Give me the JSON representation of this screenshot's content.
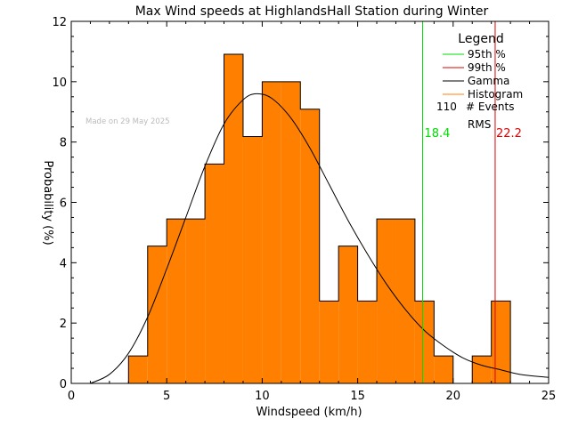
{
  "chart_data": {
    "type": "bar",
    "title": "Max Wind speeds at HighlandsHall Station during Winter",
    "xlabel": "Windspeed (km/h)",
    "ylabel": "Probability (%)",
    "watermark": "Made on 29 May 2025",
    "xlim": [
      0,
      25
    ],
    "ylim": [
      0,
      12
    ],
    "x_ticks": [
      "0",
      "5",
      "10",
      "15",
      "20",
      "25"
    ],
    "y_ticks": [
      "0",
      "2",
      "4",
      "6",
      "8",
      "10",
      "12"
    ],
    "bin_width": 1,
    "bins": [
      {
        "x": 3,
        "value": 0.91
      },
      {
        "x": 4,
        "value": 4.55
      },
      {
        "x": 5,
        "value": 5.45
      },
      {
        "x": 6,
        "value": 5.45
      },
      {
        "x": 7,
        "value": 7.27
      },
      {
        "x": 8,
        "value": 10.91
      },
      {
        "x": 9,
        "value": 8.18
      },
      {
        "x": 10,
        "value": 10.0
      },
      {
        "x": 11,
        "value": 10.0
      },
      {
        "x": 12,
        "value": 9.09
      },
      {
        "x": 13,
        "value": 2.73
      },
      {
        "x": 14,
        "value": 4.55
      },
      {
        "x": 15,
        "value": 2.73
      },
      {
        "x": 16,
        "value": 5.45
      },
      {
        "x": 17,
        "value": 5.45
      },
      {
        "x": 18,
        "value": 2.73
      },
      {
        "x": 19,
        "value": 0.91
      },
      {
        "x": 20,
        "value": 0
      },
      {
        "x": 21,
        "value": 0.91
      },
      {
        "x": 22,
        "value": 2.73
      }
    ],
    "gamma_curve": {
      "peak_x": 9.7,
      "peak_y": 9.6,
      "points": [
        [
          1.0,
          0.0
        ],
        [
          2.0,
          0.3
        ],
        [
          3.0,
          1.0
        ],
        [
          4.0,
          2.2
        ],
        [
          5.0,
          3.8
        ],
        [
          6.0,
          5.5
        ],
        [
          7.0,
          7.2
        ],
        [
          8.0,
          8.6
        ],
        [
          9.0,
          9.4
        ],
        [
          9.7,
          9.6
        ],
        [
          10.5,
          9.45
        ],
        [
          11.5,
          8.8
        ],
        [
          12.5,
          7.8
        ],
        [
          13.5,
          6.6
        ],
        [
          14.5,
          5.4
        ],
        [
          15.5,
          4.3
        ],
        [
          16.5,
          3.3
        ],
        [
          17.5,
          2.45
        ],
        [
          18.5,
          1.75
        ],
        [
          19.5,
          1.25
        ],
        [
          20.5,
          0.85
        ],
        [
          21.5,
          0.6
        ],
        [
          22.5,
          0.45
        ],
        [
          23.5,
          0.3
        ],
        [
          25.0,
          0.2
        ]
      ]
    },
    "percentile_95": {
      "x": 18.4,
      "label": "18.4"
    },
    "percentile_99": {
      "x": 22.2,
      "label": "22.2"
    },
    "legend": {
      "title": "Legend",
      "entries": [
        {
          "label": "95th %",
          "color": "#00dd00"
        },
        {
          "label": "99th %",
          "color": "#dd0000"
        },
        {
          "label": "Gamma",
          "color": "#000000"
        },
        {
          "label": "Histogram",
          "color": "#ff8000"
        }
      ],
      "events_count": "110",
      "events_label": "# Events",
      "rms_label": "RMS"
    },
    "colors": {
      "histogram_fill": "#ff8000",
      "outline": "#000000",
      "p95": "#00dd00",
      "p99": "#dd0000",
      "watermark": "#bbbbbb"
    }
  }
}
